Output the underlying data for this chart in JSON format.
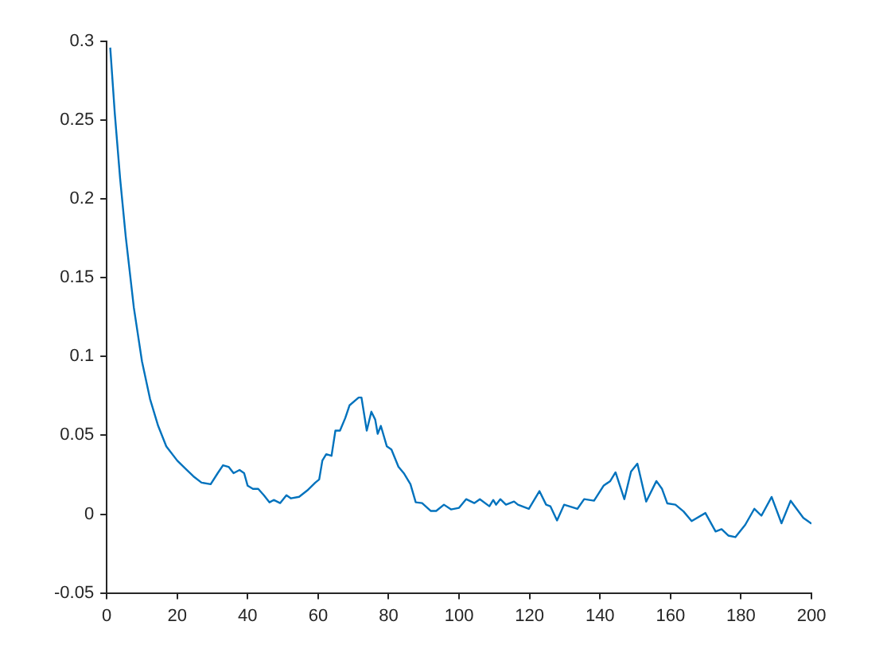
{
  "chart_data": {
    "type": "line",
    "x": [
      1,
      2.3,
      3.8,
      5.4,
      7.7,
      10,
      12.3,
      14.6,
      16.9,
      20,
      22.3,
      24.6,
      26.9,
      29.5,
      31.5,
      33,
      34.6,
      36,
      37.7,
      39,
      40,
      41.5,
      43,
      44.6,
      46.2,
      47.4,
      49.2,
      51,
      52.3,
      54.6,
      56.9,
      59.2,
      60.3,
      61.2,
      62.3,
      63.8,
      64.9,
      66.2,
      67.7,
      68.9,
      71.5,
      72.3,
      73.8,
      75.1,
      76.2,
      76.9,
      77.8,
      79.5,
      80.8,
      82.8,
      84.3,
      86.2,
      87.7,
      89.5,
      92,
      93.5,
      95.7,
      97.7,
      100,
      102,
      104.3,
      105.9,
      108.6,
      109.7,
      110.5,
      111.7,
      113.3,
      115.6,
      116.7,
      119.8,
      122.8,
      124.7,
      125.9,
      127.8,
      129.8,
      133.6,
      135.5,
      138.3,
      141,
      142.9,
      144.4,
      146.9,
      148.8,
      150.6,
      153.1,
      156,
      157.6,
      159.1,
      161.4,
      163.7,
      166,
      169.9,
      172.8,
      174.5,
      176.4,
      178.4,
      181.2,
      183.8,
      185.8,
      188.7,
      191.5,
      194.1,
      197.7,
      200
    ],
    "series": [
      {
        "color": "#0072bd",
        "values": [
          0.296,
          0.254,
          0.213,
          0.176,
          0.131,
          0.097,
          0.073,
          0.056,
          0.043,
          0.034,
          0.029,
          0.024,
          0.02,
          0.019,
          0.026,
          0.031,
          0.03,
          0.026,
          0.028,
          0.026,
          0.018,
          0.016,
          0.016,
          0.012,
          0.0075,
          0.009,
          0.007,
          0.012,
          0.01,
          0.011,
          0.015,
          0.02,
          0.022,
          0.034,
          0.038,
          0.037,
          0.053,
          0.053,
          0.061,
          0.069,
          0.074,
          0.074,
          0.053,
          0.065,
          0.06,
          0.051,
          0.056,
          0.043,
          0.041,
          0.03,
          0.026,
          0.019,
          0.0075,
          0.007,
          0.002,
          0.002,
          0.006,
          0.003,
          0.004,
          0.0095,
          0.007,
          0.0095,
          0.005,
          0.009,
          0.006,
          0.0095,
          0.006,
          0.008,
          0.006,
          0.0034,
          0.0146,
          0.006,
          0.005,
          -0.004,
          0.006,
          0.0034,
          0.0095,
          0.0085,
          0.018,
          0.021,
          0.0265,
          0.0095,
          0.027,
          0.032,
          0.008,
          0.021,
          0.016,
          0.0068,
          0.006,
          0.0017,
          -0.0044,
          0.0007,
          -0.011,
          -0.0095,
          -0.0136,
          -0.0146,
          -0.0068,
          0.0034,
          -0.001,
          0.0109,
          -0.0058,
          0.0085,
          -0.0024,
          -0.006
        ]
      }
    ],
    "xlim": [
      0,
      200
    ],
    "xticks": [
      0,
      20,
      40,
      60,
      80,
      100,
      120,
      140,
      160,
      180,
      200
    ],
    "ylim": [
      -0.05,
      0.3
    ],
    "yticks": [
      -0.05,
      0,
      0.05,
      0.1,
      0.15,
      0.2,
      0.25,
      0.3
    ],
    "grid": false,
    "legend": false
  }
}
